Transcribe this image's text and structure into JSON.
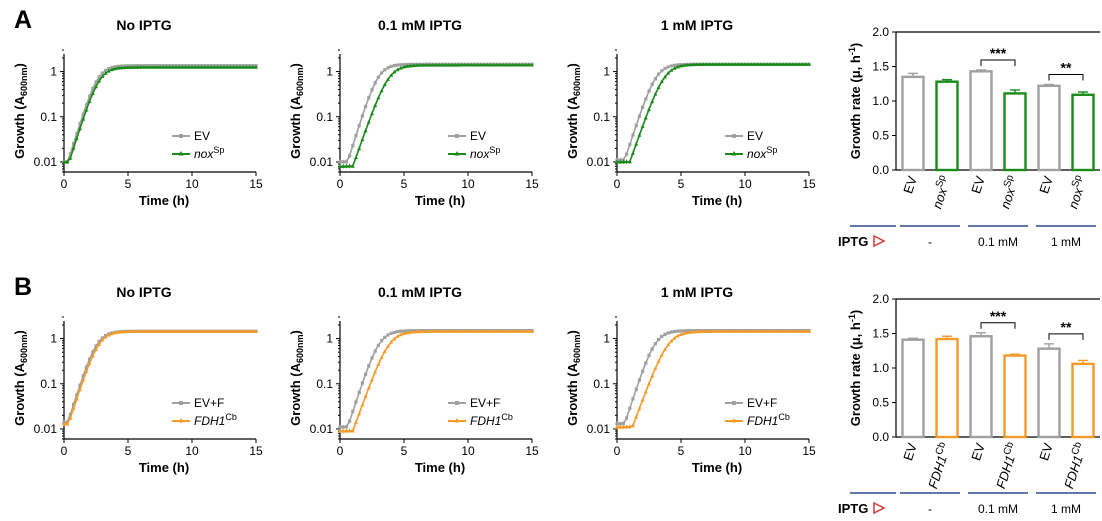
{
  "colors": {
    "ev": "#a0a0a0",
    "nox": "#1a8a1a",
    "fdh": "#f39a2b",
    "iptg_line": "#2b4a8a",
    "iptg_arrow": "#d23a3a"
  },
  "panels": [
    {
      "letter": "A",
      "mutant_color": "nox",
      "growth_plots": [
        {
          "title": "No IPTG",
          "xlabel": "Time (h)",
          "ylabel_main": "Growth (A",
          "ylabel_sub": "600nm",
          "ylabel_end": ")",
          "legend": [
            {
              "main": "EV",
              "sup": "",
              "italic": false,
              "color": "ev"
            },
            {
              "main": "nox",
              "sup": "Sp",
              "italic": true,
              "color": "nox"
            }
          ]
        },
        {
          "title": "0.1 mM IPTG",
          "xlabel": "Time (h)",
          "ylabel_main": "Growth (A",
          "ylabel_sub": "600nm",
          "ylabel_end": ")",
          "legend": [
            {
              "main": "EV",
              "sup": "",
              "italic": false,
              "color": "ev"
            },
            {
              "main": "nox",
              "sup": "Sp",
              "italic": true,
              "color": "nox"
            }
          ]
        },
        {
          "title": "1 mM IPTG",
          "xlabel": "Time (h)",
          "ylabel_main": "Growth (A",
          "ylabel_sub": "600nm",
          "ylabel_end": ")",
          "legend": [
            {
              "main": "EV",
              "sup": "",
              "italic": false,
              "color": "ev"
            },
            {
              "main": "nox",
              "sup": "Sp",
              "italic": true,
              "color": "nox"
            }
          ]
        }
      ],
      "bar_chart": {
        "ylabel_main": "Growth rate (μ, h",
        "ylabel_sup": "-1",
        "ylabel_end": ")",
        "bar_labels": [
          {
            "main": "EV",
            "sup": "",
            "italic": false
          },
          {
            "main": "nox",
            "sup": "Sp",
            "italic": true
          },
          {
            "main": "EV",
            "sup": "",
            "italic": false
          },
          {
            "main": "nox",
            "sup": "Sp",
            "italic": true
          },
          {
            "main": "EV",
            "sup": "",
            "italic": false
          },
          {
            "main": "nox",
            "sup": "Sp",
            "italic": true
          }
        ],
        "significance": [
          "***",
          "**"
        ],
        "iptg_label": "IPTG",
        "iptg_groups": [
          "-",
          "0.1 mM",
          "1 mM"
        ]
      }
    },
    {
      "letter": "B",
      "mutant_color": "fdh",
      "growth_plots": [
        {
          "title": "No IPTG",
          "xlabel": "Time (h)",
          "ylabel_main": "Growth (A",
          "ylabel_sub": "600nm",
          "ylabel_end": ")",
          "legend": [
            {
              "main": "EV+F",
              "sup": "",
              "italic": false,
              "color": "ev"
            },
            {
              "main": "FDH1",
              "sup": "Cb",
              "italic": true,
              "color": "fdh"
            }
          ]
        },
        {
          "title": "0.1 mM IPTG",
          "xlabel": "Time (h)",
          "ylabel_main": "Growth (A",
          "ylabel_sub": "600nm",
          "ylabel_end": ")",
          "legend": [
            {
              "main": "EV+F",
              "sup": "",
              "italic": false,
              "color": "ev"
            },
            {
              "main": "FDH1",
              "sup": "Cb",
              "italic": true,
              "color": "fdh"
            }
          ]
        },
        {
          "title": "1 mM IPTG",
          "xlabel": "Time (h)",
          "ylabel_main": "Growth (A",
          "ylabel_sub": "600nm",
          "ylabel_end": ")",
          "legend": [
            {
              "main": "EV+F",
              "sup": "",
              "italic": false,
              "color": "ev"
            },
            {
              "main": "FDH1",
              "sup": "Cb",
              "italic": true,
              "color": "fdh"
            }
          ]
        }
      ],
      "bar_chart": {
        "ylabel_main": "Growth rate (μ, h",
        "ylabel_sup": "-1",
        "ylabel_end": ")",
        "bar_labels": [
          {
            "main": "EV",
            "sup": "",
            "italic": false
          },
          {
            "main": "FDH1",
            "sup": "Cb",
            "italic": true
          },
          {
            "main": "EV",
            "sup": "",
            "italic": false
          },
          {
            "main": "FDH1",
            "sup": "Cb",
            "italic": true
          },
          {
            "main": "EV",
            "sup": "",
            "italic": false
          },
          {
            "main": "FDH1",
            "sup": "Cb",
            "italic": true
          }
        ],
        "significance": [
          "***",
          "**"
        ],
        "iptg_label": "IPTG",
        "iptg_groups": [
          "-",
          "0.1 mM",
          "1 mM"
        ]
      }
    }
  ],
  "chart_data": [
    {
      "type": "line",
      "panel": "A",
      "title": "No IPTG",
      "xlabel": "Time (h)",
      "ylabel": "Growth (A600nm)",
      "xlim": [
        0,
        15
      ],
      "ylim": [
        0.006,
        3
      ],
      "yscale": "log",
      "xticks": [
        0,
        5,
        10,
        15
      ],
      "yticks": [
        "0.01",
        "0.1",
        "1"
      ],
      "series": [
        {
          "name": "EV",
          "color": "#a0a0a0",
          "start": 0.01,
          "ymax": 1.35,
          "rate": 2.1,
          "lag": 0.3
        },
        {
          "name": "nox Sp",
          "color": "#1a8a1a",
          "start": 0.01,
          "ymax": 1.25,
          "rate": 2.05,
          "lag": 0.4
        }
      ]
    },
    {
      "type": "line",
      "panel": "A",
      "title": "0.1 mM IPTG",
      "xlabel": "Time (h)",
      "ylabel": "Growth (A600nm)",
      "xlim": [
        0,
        15
      ],
      "ylim": [
        0.006,
        3
      ],
      "yscale": "log",
      "xticks": [
        0,
        5,
        10,
        15
      ],
      "yticks": [
        "0.01",
        "0.1",
        "1"
      ],
      "series": [
        {
          "name": "EV",
          "color": "#a0a0a0",
          "start": 0.01,
          "ymax": 1.45,
          "rate": 2.1,
          "lag": 0.6
        },
        {
          "name": "nox Sp",
          "color": "#1a8a1a",
          "start": 0.008,
          "ymax": 1.4,
          "rate": 1.85,
          "lag": 1.0
        }
      ]
    },
    {
      "type": "line",
      "panel": "A",
      "title": "1 mM IPTG",
      "xlabel": "Time (h)",
      "ylabel": "Growth (A600nm)",
      "xlim": [
        0,
        15
      ],
      "ylim": [
        0.006,
        3
      ],
      "yscale": "log",
      "xticks": [
        0,
        5,
        10,
        15
      ],
      "yticks": [
        "0.01",
        "0.1",
        "1"
      ],
      "series": [
        {
          "name": "EV",
          "color": "#a0a0a0",
          "start": 0.011,
          "ymax": 1.45,
          "rate": 2.0,
          "lag": 0.6
        },
        {
          "name": "nox Sp",
          "color": "#1a8a1a",
          "start": 0.01,
          "ymax": 1.45,
          "rate": 1.85,
          "lag": 1.0
        }
      ]
    },
    {
      "type": "bar",
      "panel": "A",
      "xlabel": "IPTG",
      "ylabel": "Growth rate (μ, h-1)",
      "ylim": [
        0,
        2.0
      ],
      "yticks": [
        "0.0",
        "0.5",
        "1.0",
        "1.5",
        "2.0"
      ],
      "categories": [
        "EV",
        "nox Sp",
        "EV",
        "nox Sp",
        "EV",
        "nox Sp"
      ],
      "groups": [
        "-",
        "-",
        "0.1 mM",
        "0.1 mM",
        "1 mM",
        "1 mM"
      ],
      "values": [
        1.35,
        1.28,
        1.43,
        1.11,
        1.22,
        1.09
      ],
      "errors": [
        0.05,
        0.03,
        0.02,
        0.05,
        0.02,
        0.04
      ],
      "colors": [
        "#a0a0a0",
        "#1a8a1a",
        "#a0a0a0",
        "#1a8a1a",
        "#a0a0a0",
        "#1a8a1a"
      ],
      "significance": [
        {
          "between": [
            2,
            3
          ],
          "label": "***"
        },
        {
          "between": [
            4,
            5
          ],
          "label": "**"
        }
      ]
    },
    {
      "type": "line",
      "panel": "B",
      "title": "No IPTG",
      "xlabel": "Time (h)",
      "ylabel": "Growth (A600nm)",
      "xlim": [
        0,
        15
      ],
      "ylim": [
        0.006,
        3
      ],
      "yscale": "log",
      "xticks": [
        0,
        5,
        10,
        15
      ],
      "yticks": [
        "0.01",
        "0.1",
        "1"
      ],
      "series": [
        {
          "name": "EV+F",
          "color": "#a0a0a0",
          "start": 0.014,
          "ymax": 1.45,
          "rate": 2.05,
          "lag": 0.3
        },
        {
          "name": "FDH1 Cb",
          "color": "#f39a2b",
          "start": 0.013,
          "ymax": 1.45,
          "rate": 2.0,
          "lag": 0.35
        }
      ]
    },
    {
      "type": "line",
      "panel": "B",
      "title": "0.1 mM IPTG",
      "xlabel": "Time (h)",
      "ylabel": "Growth (A600nm)",
      "xlim": [
        0,
        15
      ],
      "ylim": [
        0.006,
        3
      ],
      "yscale": "log",
      "xticks": [
        0,
        5,
        10,
        15
      ],
      "yticks": [
        "0.01",
        "0.1",
        "1"
      ],
      "series": [
        {
          "name": "EV+F",
          "color": "#a0a0a0",
          "start": 0.011,
          "ymax": 1.5,
          "rate": 2.0,
          "lag": 0.6
        },
        {
          "name": "FDH1 Cb",
          "color": "#f39a2b",
          "start": 0.009,
          "ymax": 1.45,
          "rate": 1.8,
          "lag": 1.0
        }
      ]
    },
    {
      "type": "line",
      "panel": "B",
      "title": "1 mM IPTG",
      "xlabel": "Time (h)",
      "ylabel": "Growth (A600nm)",
      "xlim": [
        0,
        15
      ],
      "ylim": [
        0.006,
        3
      ],
      "yscale": "log",
      "xticks": [
        0,
        5,
        10,
        15
      ],
      "yticks": [
        "0.01",
        "0.1",
        "1"
      ],
      "series": [
        {
          "name": "EV+F",
          "color": "#a0a0a0",
          "start": 0.013,
          "ymax": 1.5,
          "rate": 2.0,
          "lag": 0.6
        },
        {
          "name": "FDH1 Cb",
          "color": "#f39a2b",
          "start": 0.011,
          "ymax": 1.45,
          "rate": 1.75,
          "lag": 1.2
        }
      ]
    },
    {
      "type": "bar",
      "panel": "B",
      "xlabel": "IPTG",
      "ylabel": "Growth rate (μ, h-1)",
      "ylim": [
        0,
        2.0
      ],
      "yticks": [
        "0.0",
        "0.5",
        "1.0",
        "1.5",
        "2.0"
      ],
      "categories": [
        "EV",
        "FDH1 Cb",
        "EV",
        "FDH1 Cb",
        "EV",
        "FDH1 Cb"
      ],
      "groups": [
        "-",
        "-",
        "0.1 mM",
        "0.1 mM",
        "1 mM",
        "1 mM"
      ],
      "values": [
        1.41,
        1.42,
        1.46,
        1.18,
        1.28,
        1.06
      ],
      "errors": [
        0.02,
        0.04,
        0.05,
        0.02,
        0.07,
        0.05
      ],
      "colors": [
        "#a0a0a0",
        "#f39a2b",
        "#a0a0a0",
        "#f39a2b",
        "#a0a0a0",
        "#f39a2b"
      ],
      "significance": [
        {
          "between": [
            2,
            3
          ],
          "label": "***"
        },
        {
          "between": [
            4,
            5
          ],
          "label": "**"
        }
      ]
    }
  ]
}
